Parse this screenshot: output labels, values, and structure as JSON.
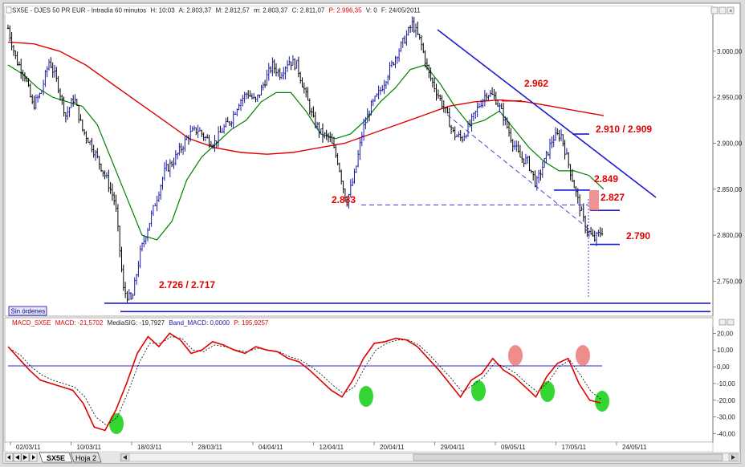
{
  "main_panel": {
    "title_prefix": "SX5E - DJES 50 PR EUR - Intradía 60 minutos",
    "h": "H: 10:03",
    "a": "A: 2.803,37",
    "m": "M: 2.812,57",
    "mn": "m: 2.803,37",
    "c": "C: 2.811,07",
    "p": "P: 2.996,35",
    "v": "V: 0",
    "f": "F: 24/05/2011",
    "sin_ordenes": "Sin órdenes"
  },
  "macd_panel": {
    "name": "MACD_SX5E",
    "macd": "MACD: -21,5702",
    "sig": "MediaSIG: -19,7927",
    "band": "Band_MACD: 0,0000",
    "p": "P: 195,9257"
  },
  "tabs": [
    "SX5E",
    "Hoja 2"
  ],
  "colors": {
    "price": "#000000",
    "price_up": "#1a1aa8",
    "ma_fast": "#008000",
    "ma_slow": "#e00000",
    "trendline": "#1a1ad0",
    "annotation": "#e00000",
    "macd": "#e00000",
    "signal": "#000000",
    "oversold_marker": "#1ed21e",
    "overbought_marker": "#f08080"
  },
  "chart_data": [
    {
      "type": "line",
      "title": "SX5E - DJES 50 PR EUR - Intradía 60 minutos",
      "x_tick_labels": [
        "02/03/11",
        "10/03/11",
        "18/03/11",
        "28/03/11",
        "04/04/11",
        "12/04/11",
        "20/04/11",
        "29/04/11",
        "09/05/11",
        "17/05/11",
        "24/05/11"
      ],
      "y_tick_labels": [
        "3.000,00",
        "2.950,00",
        "2.900,00",
        "2.850,00",
        "2.800,00",
        "2.750,00"
      ],
      "ylim": [
        2712,
        3040
      ],
      "grid": false,
      "series": [
        {
          "name": "price",
          "values": [
            3025,
            2990,
            2975,
            2940,
            2955,
            2990,
            2965,
            2930,
            2950,
            2915,
            2900,
            2880,
            2860,
            2835,
            2740,
            2728,
            2780,
            2810,
            2840,
            2870,
            2880,
            2895,
            2910,
            2915,
            2905,
            2900,
            2915,
            2925,
            2945,
            2955,
            2945,
            2965,
            2985,
            2975,
            2990,
            2985,
            2955,
            2925,
            2910,
            2905,
            2880,
            2835,
            2865,
            2915,
            2940,
            2955,
            2975,
            2995,
            3012,
            3030,
            3010,
            2975,
            2955,
            2935,
            2910,
            2905,
            2920,
            2940,
            2955,
            2950,
            2930,
            2905,
            2885,
            2880,
            2855,
            2880,
            2905,
            2910,
            2875,
            2840,
            2808,
            2795,
            2805
          ]
        },
        {
          "name": "fast_ma",
          "values": [
            2985,
            2975,
            2960,
            2950,
            2945,
            2940,
            2920,
            2880,
            2840,
            2800,
            2795,
            2815,
            2860,
            2885,
            2900,
            2915,
            2925,
            2945,
            2955,
            2955,
            2935,
            2910,
            2905,
            2910,
            2925,
            2945,
            2960,
            2980,
            2985,
            2965,
            2940,
            2920,
            2925,
            2935,
            2915,
            2895,
            2880,
            2870,
            2870,
            2865,
            2850
          ]
        },
        {
          "name": "slow_ma",
          "values": [
            3010,
            3008,
            3000,
            2985,
            2965,
            2945,
            2925,
            2905,
            2895,
            2890,
            2888,
            2890,
            2895,
            2900,
            2910,
            2920,
            2930,
            2940,
            2945,
            2947,
            2945,
            2940,
            2935,
            2930
          ]
        }
      ],
      "levels": [
        {
          "label": "2.962",
          "value": 2962
        },
        {
          "label": "2.910 / 2.909",
          "value": 2910
        },
        {
          "label": "2.849",
          "value": 2849
        },
        {
          "label": "2.833",
          "value": 2833
        },
        {
          "label": "2.827",
          "value": 2827
        },
        {
          "label": "2.790",
          "value": 2790
        },
        {
          "label": "2.726 / 2.717",
          "value": 2726
        }
      ]
    },
    {
      "type": "line",
      "title": "MACD_SX5E",
      "y_tick_labels": [
        "20,00",
        "10,00",
        "0,00",
        "-10,00",
        "-20,00",
        "-30,00",
        "-40,00"
      ],
      "ylim": [
        -45,
        24
      ],
      "series": [
        {
          "name": "MACD",
          "values": [
            12,
            5,
            -2,
            -8,
            -10,
            -12,
            -14,
            -22,
            -36,
            -38,
            -26,
            -10,
            8,
            18,
            12,
            20,
            16,
            8,
            10,
            15,
            13,
            10,
            8,
            12,
            10,
            9,
            5,
            3,
            -2,
            -8,
            -14,
            -18,
            -8,
            5,
            14,
            15,
            17,
            16,
            12,
            5,
            -2,
            -10,
            -18,
            -8,
            -4,
            5,
            -2,
            -6,
            -12,
            -18,
            -6,
            2,
            5,
            -10,
            -20,
            -21.57
          ]
        },
        {
          "name": "MediaSIG",
          "values": [
            11,
            7,
            0,
            -5,
            -8,
            -10,
            -12,
            -18,
            -30,
            -35,
            -30,
            -15,
            2,
            14,
            14,
            18,
            17,
            10,
            9,
            13,
            12,
            10,
            9,
            11,
            10,
            9,
            6,
            4,
            0,
            -5,
            -11,
            -16,
            -12,
            0,
            10,
            14,
            16,
            16,
            13,
            7,
            0,
            -7,
            -15,
            -11,
            -6,
            2,
            0,
            -4,
            -10,
            -15,
            -9,
            0,
            4,
            -5,
            -15,
            -19.79
          ]
        }
      ]
    }
  ]
}
